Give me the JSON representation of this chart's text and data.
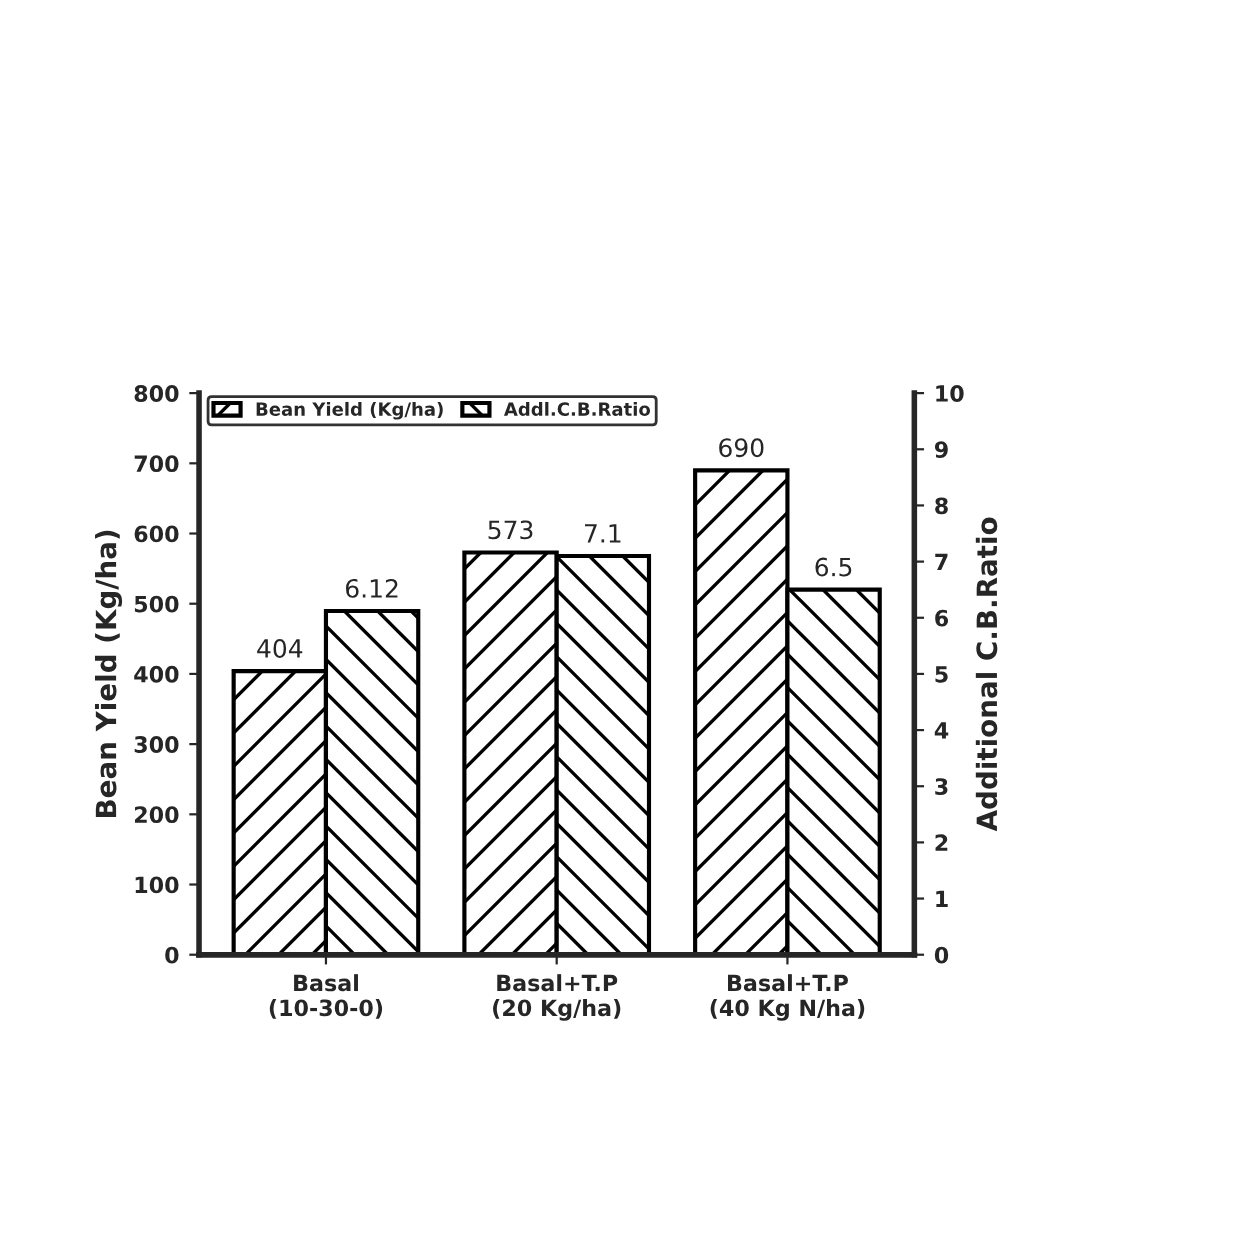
{
  "chart_data": {
    "type": "bar",
    "categories": [
      "Basal\n(10-30-0)",
      "Basal+T.P\n(20 Kg/ha)",
      "Basal+T.P\n(40 Kg N/ha)"
    ],
    "series": [
      {
        "name": "Bean Yield (Kg/ha)",
        "color": "#000000",
        "values": [
          404,
          573,
          690
        ]
      },
      {
        "name": "Addl.C.B.Ratio",
        "color": "#000000",
        "values": [
          6.12,
          7.1,
          6.5
        ],
        "axis": "y2"
      }
    ],
    "ylabel": "Bean Yield (Kg/ha)",
    "y2label": "Additional C.B.Ratio",
    "ylim": [
      0,
      800
    ],
    "yticks": [
      0,
      100,
      200,
      300,
      400,
      500,
      600,
      700,
      800
    ],
    "y2lim": [
      0,
      10
    ],
    "y2ticks": [
      0,
      1,
      2,
      3,
      4,
      5,
      6,
      7,
      8,
      9,
      10
    ],
    "data_labels": true,
    "legend": "top left",
    "grid": false
  }
}
